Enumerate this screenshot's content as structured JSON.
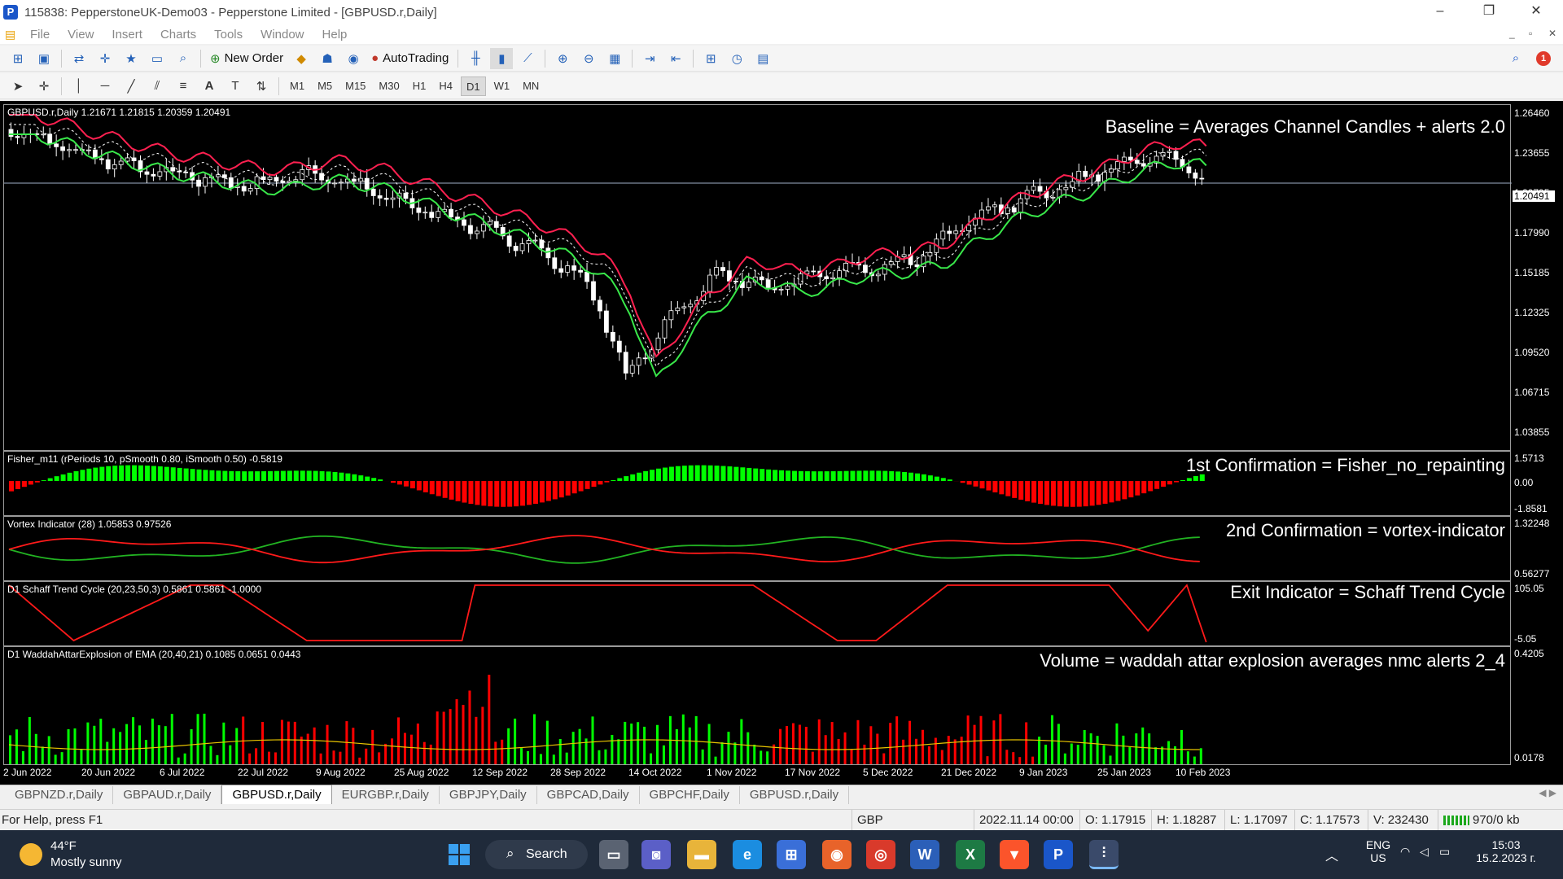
{
  "window": {
    "title": "115838: PepperstoneUK-Demo03 - Pepperstone Limited - [GBPUSD.r,Daily]",
    "icon_letter": "P",
    "minimize": "–",
    "restore": "❐",
    "close": "✕"
  },
  "menu": [
    "File",
    "View",
    "Insert",
    "Charts",
    "Tools",
    "Window",
    "Help"
  ],
  "mdi_controls": [
    "_",
    "▫",
    "✕"
  ],
  "toolbar": {
    "new_order_label": "New Order",
    "autotrading_label": "AutoTrading",
    "notification_count": "1",
    "timeframes": [
      "M1",
      "M5",
      "M15",
      "M30",
      "H1",
      "H4",
      "D1",
      "W1",
      "MN"
    ],
    "active_timeframe": "D1"
  },
  "main_pane": {
    "label": "GBPUSD.r,Daily  1.21671 1.21815 1.20359 1.20491",
    "note": "Baseline = Averages Channel Candles + alerts 2.0",
    "price_labels": [
      "1.26460",
      "1.23655",
      "1.20795",
      "1.17990",
      "1.15185",
      "1.12325",
      "1.09520",
      "1.06715",
      "1.03855"
    ],
    "current_price": "1.20491"
  },
  "fisher_pane": {
    "label": "Fisher_m11  (rPeriods 10, pSmooth 0.80, iSmooth 0.50)  -0.5819",
    "note": "1st Confirmation = Fisher_no_repainting",
    "scale": [
      "1.5713",
      "0.00",
      "-1.8581"
    ]
  },
  "vortex_pane": {
    "label": "Vortex Indicator (28)  1.05853 0.97526",
    "note": "2nd Confirmation = vortex-indicator",
    "scale": [
      "1.32248",
      "0.56277"
    ]
  },
  "schaff_pane": {
    "label": "D1 Schaff Trend Cycle (20,23,50,3) 0.5861 0.5861 -1.0000",
    "note": "Exit Indicator = Schaff Trend Cycle",
    "scale": [
      "105.05",
      "-5.05"
    ]
  },
  "waddah_pane": {
    "label": "D1  WaddahAttarExplosion of EMA (20,40,21) 0.1085 0.0651 0.0443",
    "note": "Volume = waddah attar explosion averages nmc alerts 2_4",
    "scale": [
      "0.4205",
      "0.0178"
    ]
  },
  "time_axis": [
    "2 Jun 2022",
    "20 Jun 2022",
    "6 Jul 2022",
    "22 Jul 2022",
    "9 Aug 2022",
    "25 Aug 2022",
    "12 Sep 2022",
    "28 Sep 2022",
    "14 Oct 2022",
    "1 Nov 2022",
    "17 Nov 2022",
    "5 Dec 2022",
    "21 Dec 2022",
    "9 Jan 2023",
    "25 Jan 2023",
    "10 Feb 2023"
  ],
  "chart_tabs": [
    "GBPNZD.r,Daily",
    "GBPAUD.r,Daily",
    "GBPUSD.r,Daily",
    "EURGBP.r,Daily",
    "GBPJPY,Daily",
    "GBPCAD,Daily",
    "GBPCHF,Daily",
    "GBPUSD.r,Daily"
  ],
  "active_tab_index": 2,
  "status": {
    "help": "For Help, press F1",
    "currency": "GBP",
    "datetime": "2022.11.14 00:00",
    "open": "O: 1.17915",
    "high": "H: 1.18287",
    "low": "L: 1.17097",
    "close": "C: 1.17573",
    "volume": "V: 232430",
    "traffic": "970/0 kb"
  },
  "taskbar": {
    "temp": "44°F",
    "weather": "Mostly sunny",
    "search": "Search",
    "lang1": "ENG",
    "lang2": "US",
    "time": "15:03",
    "date": "15.2.2023 г."
  },
  "colors": {
    "bull": "#00ff00",
    "bear": "#ff0000",
    "channel_upper": "#ff2050",
    "channel_lower": "#39e84a",
    "vortex_plus": "#22b322",
    "vortex_minus": "#ff1a1a",
    "signal": "#e8c400"
  }
}
